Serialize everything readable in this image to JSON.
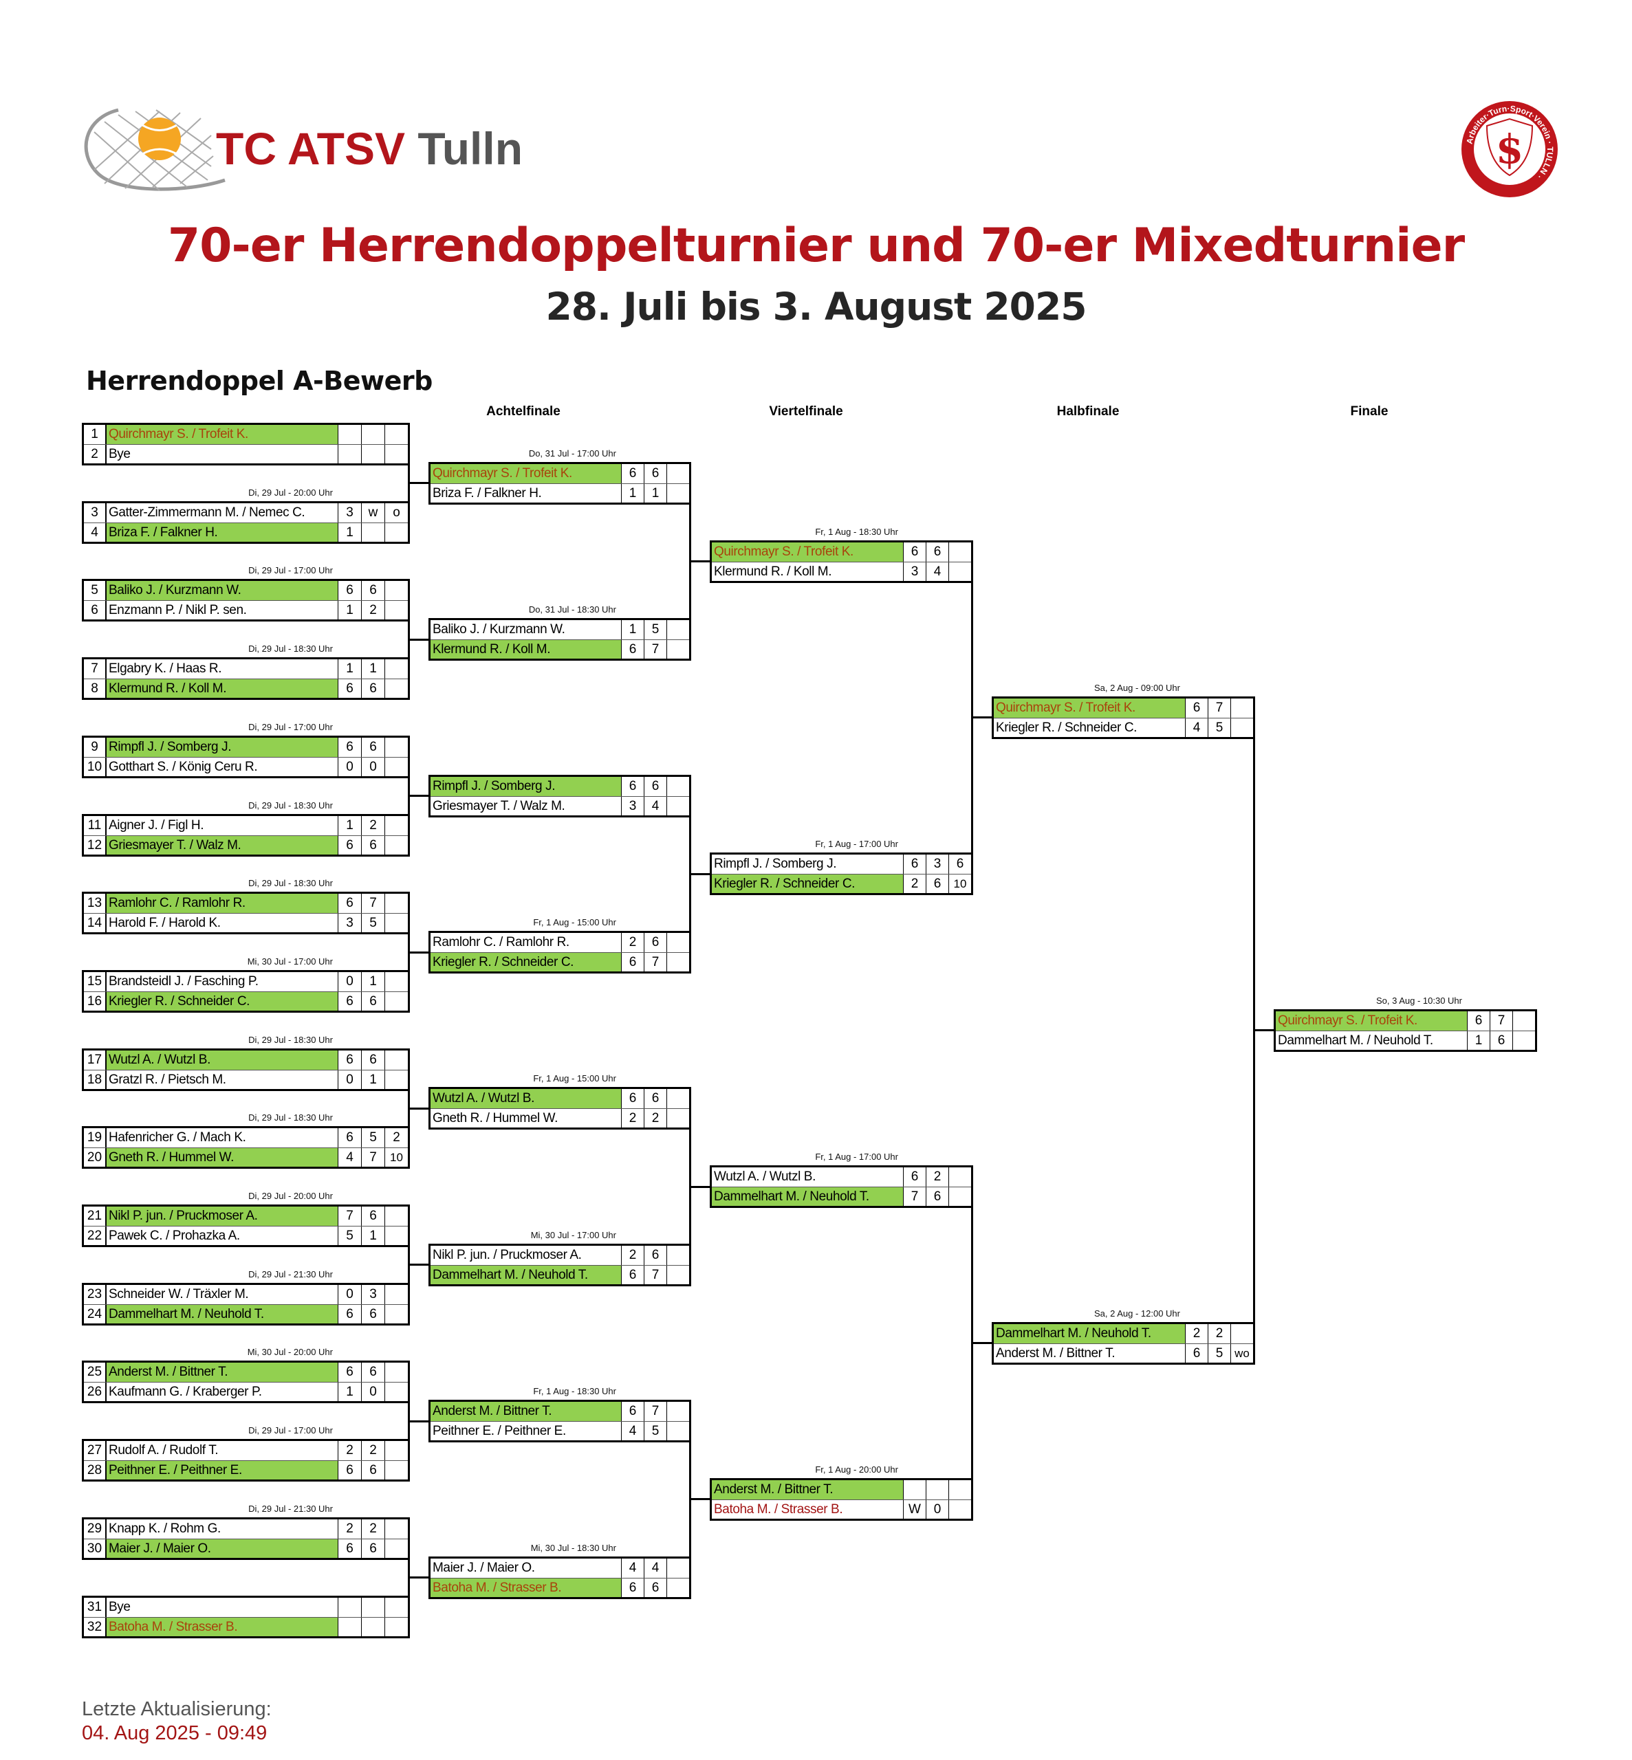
{
  "header": {
    "club_logo_text": "TC ATSV Tulln",
    "seal_text": "Arbeiter-Turn-Sport-Verein · TULLN ·",
    "title": "70-er Herrendoppelturnier und 70-er Mixedturnier",
    "subtitle": "28. Juli bis 3. August 2025"
  },
  "section_title": "Herrendoppel A-Bewerb",
  "colors": {
    "winner_fill": "#92d050",
    "title": "#b3151b",
    "seed_name": "#a8430c",
    "walkover_name": "#a31515"
  },
  "rounds": [
    {
      "label": "",
      "matches": [
        {
          "date": "",
          "players": [
            {
              "seed": "1",
              "name": "Quirchmayr S. / Trofeit K.",
              "scores": [
                "",
                "",
                ""
              ],
              "winner": true,
              "color": "#a8430c"
            },
            {
              "seed": "2",
              "name": "Bye",
              "scores": [
                "",
                "",
                ""
              ],
              "winner": false
            }
          ]
        },
        {
          "date": "Di, 29 Jul - 20:00 Uhr",
          "players": [
            {
              "seed": "3",
              "name": "Gatter-Zimmermann M. / Nemec C.",
              "scores": [
                "3",
                "w",
                "o"
              ],
              "winner": false
            },
            {
              "seed": "4",
              "name": "Briza F. / Falkner H.",
              "scores": [
                "1",
                "",
                ""
              ],
              "winner": true
            }
          ]
        },
        {
          "date": "Di, 29 Jul - 17:00 Uhr",
          "players": [
            {
              "seed": "5",
              "name": "Baliko J. / Kurzmann W.",
              "scores": [
                "6",
                "6",
                ""
              ],
              "winner": true
            },
            {
              "seed": "6",
              "name": "Enzmann P. / Nikl P. sen.",
              "scores": [
                "1",
                "2",
                ""
              ],
              "winner": false
            }
          ]
        },
        {
          "date": "Di, 29 Jul - 18:30 Uhr",
          "players": [
            {
              "seed": "7",
              "name": "Elgabry K. / Haas R.",
              "scores": [
                "1",
                "1",
                ""
              ],
              "winner": false
            },
            {
              "seed": "8",
              "name": "Klermund R. / Koll M.",
              "scores": [
                "6",
                "6",
                ""
              ],
              "winner": true
            }
          ]
        },
        {
          "date": "Di, 29 Jul - 17:00 Uhr",
          "players": [
            {
              "seed": "9",
              "name": "Rimpfl J. / Somberg J.",
              "scores": [
                "6",
                "6",
                ""
              ],
              "winner": true
            },
            {
              "seed": "10",
              "name": "Gotthart S. / König Ceru R.",
              "scores": [
                "0",
                "0",
                ""
              ],
              "winner": false
            }
          ]
        },
        {
          "date": "Di, 29 Jul - 18:30 Uhr",
          "players": [
            {
              "seed": "11",
              "name": "Aigner J. / Figl H.",
              "scores": [
                "1",
                "2",
                ""
              ],
              "winner": false
            },
            {
              "seed": "12",
              "name": "Griesmayer T. / Walz M.",
              "scores": [
                "6",
                "6",
                ""
              ],
              "winner": true
            }
          ]
        },
        {
          "date": "Di, 29 Jul - 18:30 Uhr",
          "players": [
            {
              "seed": "13",
              "name": "Ramlohr C. / Ramlohr R.",
              "scores": [
                "6",
                "7",
                ""
              ],
              "winner": true
            },
            {
              "seed": "14",
              "name": "Harold F. / Harold K.",
              "scores": [
                "3",
                "5",
                ""
              ],
              "winner": false
            }
          ]
        },
        {
          "date": "Mi, 30 Jul - 17:00 Uhr",
          "players": [
            {
              "seed": "15",
              "name": "Brandsteidl J. / Fasching P.",
              "scores": [
                "0",
                "1",
                ""
              ],
              "winner": false
            },
            {
              "seed": "16",
              "name": "Kriegler R. / Schneider C.",
              "scores": [
                "6",
                "6",
                ""
              ],
              "winner": true
            }
          ]
        },
        {
          "date": "Di, 29 Jul - 18:30 Uhr",
          "players": [
            {
              "seed": "17",
              "name": "Wutzl A. / Wutzl B.",
              "scores": [
                "6",
                "6",
                ""
              ],
              "winner": true
            },
            {
              "seed": "18",
              "name": "Gratzl R. / Pietsch M.",
              "scores": [
                "0",
                "1",
                ""
              ],
              "winner": false
            }
          ]
        },
        {
          "date": "Di, 29 Jul - 18:30 Uhr",
          "players": [
            {
              "seed": "19",
              "name": "Hafenricher G. / Mach K.",
              "scores": [
                "6",
                "5",
                "2"
              ],
              "winner": false
            },
            {
              "seed": "20",
              "name": "Gneth R. / Hummel W.",
              "scores": [
                "4",
                "7",
                "10"
              ],
              "winner": true
            }
          ]
        },
        {
          "date": "Di, 29 Jul - 20:00 Uhr",
          "players": [
            {
              "seed": "21",
              "name": "Nikl P. jun. / Pruckmoser A.",
              "scores": [
                "7",
                "6",
                ""
              ],
              "winner": true
            },
            {
              "seed": "22",
              "name": "Pawek C. / Prohazka A.",
              "scores": [
                "5",
                "1",
                ""
              ],
              "winner": false
            }
          ]
        },
        {
          "date": "Di, 29 Jul - 21:30 Uhr",
          "players": [
            {
              "seed": "23",
              "name": "Schneider W. / Träxler M.",
              "scores": [
                "0",
                "3",
                ""
              ],
              "winner": false
            },
            {
              "seed": "24",
              "name": "Dammelhart M. / Neuhold T.",
              "scores": [
                "6",
                "6",
                ""
              ],
              "winner": true
            }
          ]
        },
        {
          "date": "Mi, 30 Jul - 20:00 Uhr",
          "players": [
            {
              "seed": "25",
              "name": "Anderst M. / Bittner T.",
              "scores": [
                "6",
                "6",
                ""
              ],
              "winner": true
            },
            {
              "seed": "26",
              "name": "Kaufmann G. / Kraberger P.",
              "scores": [
                "1",
                "0",
                ""
              ],
              "winner": false
            }
          ]
        },
        {
          "date": "Di, 29 Jul - 17:00 Uhr",
          "players": [
            {
              "seed": "27",
              "name": "Rudolf A. / Rudolf T.",
              "scores": [
                "2",
                "2",
                ""
              ],
              "winner": false
            },
            {
              "seed": "28",
              "name": "Peithner E. / Peithner E.",
              "scores": [
                "6",
                "6",
                ""
              ],
              "winner": true
            }
          ]
        },
        {
          "date": "Di, 29 Jul - 21:30 Uhr",
          "players": [
            {
              "seed": "29",
              "name": "Knapp K. / Rohm G.",
              "scores": [
                "2",
                "2",
                ""
              ],
              "winner": false
            },
            {
              "seed": "30",
              "name": "Maier J. / Maier O.",
              "scores": [
                "6",
                "6",
                ""
              ],
              "winner": true
            }
          ]
        },
        {
          "date": "",
          "players": [
            {
              "seed": "31",
              "name": "Bye",
              "scores": [
                "",
                "",
                ""
              ],
              "winner": false
            },
            {
              "seed": "32",
              "name": "Batoha M. / Strasser B.",
              "scores": [
                "",
                "",
                ""
              ],
              "winner": true,
              "color": "#a8430c"
            }
          ]
        }
      ]
    },
    {
      "label": "Achtelfinale",
      "matches": [
        {
          "date": "Do, 31 Jul - 17:00 Uhr",
          "players": [
            {
              "name": "Quirchmayr S. / Trofeit K.",
              "scores": [
                "6",
                "6",
                ""
              ],
              "winner": true,
              "color": "#a8430c"
            },
            {
              "name": "Briza F. / Falkner H.",
              "scores": [
                "1",
                "1",
                ""
              ],
              "winner": false
            }
          ]
        },
        {
          "date": "Do, 31 Jul - 18:30 Uhr",
          "players": [
            {
              "name": "Baliko J. / Kurzmann W.",
              "scores": [
                "1",
                "5",
                ""
              ],
              "winner": false
            },
            {
              "name": "Klermund R. / Koll M.",
              "scores": [
                "6",
                "7",
                ""
              ],
              "winner": true
            }
          ]
        },
        {
          "date": "",
          "players": [
            {
              "name": "Rimpfl J. / Somberg J.",
              "scores": [
                "6",
                "6",
                ""
              ],
              "winner": true
            },
            {
              "name": "Griesmayer T. / Walz M.",
              "scores": [
                "3",
                "4",
                ""
              ],
              "winner": false
            }
          ]
        },
        {
          "date": "Fr, 1 Aug - 15:00 Uhr",
          "players": [
            {
              "name": "Ramlohr C. / Ramlohr R.",
              "scores": [
                "2",
                "6",
                ""
              ],
              "winner": false
            },
            {
              "name": "Kriegler R. / Schneider C.",
              "scores": [
                "6",
                "7",
                ""
              ],
              "winner": true
            }
          ]
        },
        {
          "date": "Fr, 1 Aug - 15:00 Uhr",
          "players": [
            {
              "name": "Wutzl A. / Wutzl B.",
              "scores": [
                "6",
                "6",
                ""
              ],
              "winner": true
            },
            {
              "name": "Gneth R. / Hummel W.",
              "scores": [
                "2",
                "2",
                ""
              ],
              "winner": false
            }
          ]
        },
        {
          "date": "Mi, 30 Jul - 17:00 Uhr",
          "players": [
            {
              "name": "Nikl P. jun. / Pruckmoser A.",
              "scores": [
                "2",
                "6",
                ""
              ],
              "winner": false
            },
            {
              "name": "Dammelhart M. / Neuhold T.",
              "scores": [
                "6",
                "7",
                ""
              ],
              "winner": true
            }
          ]
        },
        {
          "date": "Fr, 1 Aug - 18:30 Uhr",
          "players": [
            {
              "name": "Anderst M. / Bittner T.",
              "scores": [
                "6",
                "7",
                ""
              ],
              "winner": true
            },
            {
              "name": "Peithner E. / Peithner E.",
              "scores": [
                "4",
                "5",
                ""
              ],
              "winner": false
            }
          ]
        },
        {
          "date": "Mi, 30 Jul - 18:30 Uhr",
          "players": [
            {
              "name": "Maier J. / Maier O.",
              "scores": [
                "4",
                "4",
                ""
              ],
              "winner": false
            },
            {
              "name": "Batoha M. / Strasser B.",
              "scores": [
                "6",
                "6",
                ""
              ],
              "winner": true,
              "color": "#a8430c"
            }
          ]
        }
      ]
    },
    {
      "label": "Viertelfinale",
      "matches": [
        {
          "date": "Fr, 1 Aug - 18:30 Uhr",
          "players": [
            {
              "name": "Quirchmayr S. / Trofeit K.",
              "scores": [
                "6",
                "6",
                ""
              ],
              "winner": true,
              "color": "#a8430c"
            },
            {
              "name": "Klermund R. / Koll M.",
              "scores": [
                "3",
                "4",
                ""
              ],
              "winner": false
            }
          ]
        },
        {
          "date": "Fr, 1 Aug - 17:00 Uhr",
          "players": [
            {
              "name": "Rimpfl J. / Somberg J.",
              "scores": [
                "6",
                "3",
                "6"
              ],
              "winner": false
            },
            {
              "name": "Kriegler R. / Schneider C.",
              "scores": [
                "2",
                "6",
                "10"
              ],
              "winner": true
            }
          ]
        },
        {
          "date": "Fr, 1 Aug - 17:00 Uhr",
          "players": [
            {
              "name": "Wutzl A. / Wutzl B.",
              "scores": [
                "6",
                "2",
                ""
              ],
              "winner": false
            },
            {
              "name": "Dammelhart M. / Neuhold T.",
              "scores": [
                "7",
                "6",
                ""
              ],
              "winner": true
            }
          ]
        },
        {
          "date": "Fr, 1 Aug - 20:00 Uhr",
          "players": [
            {
              "name": "Anderst M. / Bittner T.",
              "scores": [
                "",
                "",
                ""
              ],
              "winner": true
            },
            {
              "name": "Batoha M. / Strasser B.",
              "scores": [
                "W",
                "0",
                ""
              ],
              "winner": false,
              "color": "#a31515"
            }
          ]
        }
      ]
    },
    {
      "label": "Halbfinale",
      "matches": [
        {
          "date": "Sa, 2 Aug - 09:00 Uhr",
          "players": [
            {
              "name": "Quirchmayr S. / Trofeit K.",
              "scores": [
                "6",
                "7",
                ""
              ],
              "winner": true,
              "color": "#a8430c"
            },
            {
              "name": "Kriegler R. / Schneider C.",
              "scores": [
                "4",
                "5",
                ""
              ],
              "winner": false
            }
          ]
        },
        {
          "date": "Sa, 2 Aug - 12:00 Uhr",
          "players": [
            {
              "name": "Dammelhart M. / Neuhold T.",
              "scores": [
                "2",
                "2",
                ""
              ],
              "winner": true
            },
            {
              "name": "Anderst M. / Bittner T.",
              "scores": [
                "6",
                "5",
                "wo"
              ],
              "winner": false
            }
          ]
        }
      ]
    },
    {
      "label": "Finale",
      "matches": [
        {
          "date": "So, 3 Aug - 10:30 Uhr",
          "players": [
            {
              "name": "Quirchmayr S. / Trofeit K.",
              "scores": [
                "6",
                "7",
                ""
              ],
              "winner": true,
              "color": "#a8430c"
            },
            {
              "name": "Dammelhart M. / Neuhold T.",
              "scores": [
                "1",
                "6",
                ""
              ],
              "winner": false
            }
          ]
        }
      ]
    }
  ],
  "footer": {
    "label": "Letzte Aktualisierung:",
    "timestamp": "04. Aug 2025 - 09:49"
  }
}
